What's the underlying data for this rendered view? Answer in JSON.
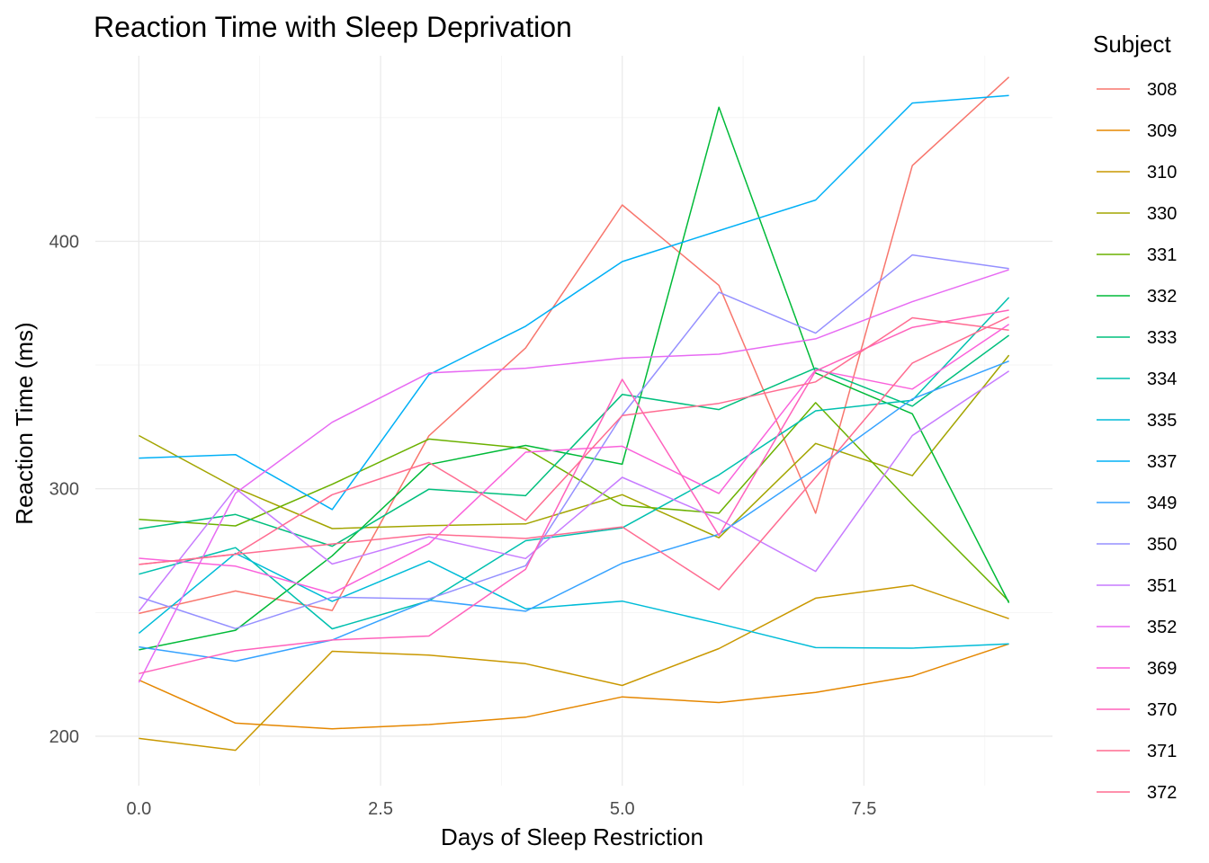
{
  "chart_data": {
    "type": "line",
    "title": "Reaction Time with Sleep Deprivation",
    "xlabel": "Days of Sleep Restriction",
    "ylabel": "Reaction Time (ms)",
    "legend_title": "Subject",
    "legend_position": "right",
    "grid": true,
    "xlim": [
      -0.45,
      9.45
    ],
    "ylim": [
      180,
      475
    ],
    "x_major_ticks": [
      {
        "value": 0,
        "label": "0.0"
      },
      {
        "value": 2.5,
        "label": "2.5"
      },
      {
        "value": 5,
        "label": "5.0"
      },
      {
        "value": 7.5,
        "label": "7.5"
      }
    ],
    "x_minor_ticks": [
      1.25,
      3.75,
      6.25,
      8.75
    ],
    "y_major_ticks": [
      {
        "value": 200,
        "label": "200"
      },
      {
        "value": 300,
        "label": "300"
      },
      {
        "value": 400,
        "label": "400"
      }
    ],
    "y_minor_ticks": [
      250,
      350,
      450
    ],
    "x": [
      0,
      1,
      2,
      3,
      4,
      5,
      6,
      7,
      8,
      9
    ],
    "series": [
      {
        "name": "308",
        "color": "#F8766D",
        "values": [
          249.6,
          258.7,
          250.8,
          321.4,
          356.9,
          414.7,
          382.2,
          290.1,
          430.6,
          466.4
        ]
      },
      {
        "name": "309",
        "color": "#E58700",
        "values": [
          222.7,
          205.3,
          203.0,
          204.7,
          207.7,
          215.9,
          213.6,
          217.7,
          224.3,
          237.3
        ]
      },
      {
        "name": "310",
        "color": "#C99800",
        "values": [
          199.1,
          194.3,
          234.3,
          232.8,
          229.3,
          220.5,
          235.4,
          255.8,
          261.0,
          247.5
        ]
      },
      {
        "name": "330",
        "color": "#A3A500",
        "values": [
          321.5,
          300.4,
          283.9,
          285.1,
          285.8,
          297.6,
          280.2,
          318.3,
          305.3,
          354.0
        ]
      },
      {
        "name": "331",
        "color": "#6BB100",
        "values": [
          287.6,
          285.0,
          301.8,
          320.1,
          316.3,
          293.3,
          290.1,
          334.8,
          293.7,
          254.5
        ]
      },
      {
        "name": "332",
        "color": "#00BA38",
        "values": [
          234.9,
          242.8,
          272.9,
          309.8,
          317.5,
          309.9,
          454.2,
          346.8,
          330.3,
          253.9
        ]
      },
      {
        "name": "333",
        "color": "#00BF7D",
        "values": [
          283.8,
          289.6,
          276.8,
          299.8,
          297.2,
          338.1,
          332.0,
          348.8,
          333.4,
          362.0
        ]
      },
      {
        "name": "334",
        "color": "#00C0AF",
        "values": [
          265.5,
          276.2,
          243.4,
          254.7,
          279.0,
          284.2,
          305.6,
          331.5,
          335.8,
          377.3
        ]
      },
      {
        "name": "335",
        "color": "#00BCD8",
        "values": [
          241.6,
          273.9,
          254.5,
          270.8,
          251.5,
          254.6,
          245.5,
          235.8,
          235.6,
          237.3
        ]
      },
      {
        "name": "337",
        "color": "#00B0F6",
        "values": [
          312.4,
          313.8,
          291.6,
          346.1,
          365.7,
          391.8,
          404.3,
          416.7,
          455.9,
          458.9
        ]
      },
      {
        "name": "349",
        "color": "#35A2FF",
        "values": [
          236.1,
          230.3,
          238.9,
          254.9,
          250.5,
          269.9,
          281.6,
          308.1,
          336.3,
          351.6
        ]
      },
      {
        "name": "350",
        "color": "#9590FF",
        "values": [
          256.3,
          243.5,
          256.2,
          255.5,
          268.9,
          329.7,
          379.4,
          362.9,
          394.5,
          389.0
        ]
      },
      {
        "name": "351",
        "color": "#C77CFF",
        "values": [
          250.5,
          300.1,
          269.6,
          280.6,
          271.8,
          304.6,
          287.7,
          266.6,
          321.5,
          347.6
        ]
      },
      {
        "name": "352",
        "color": "#E76BF3",
        "values": [
          221.7,
          298.2,
          326.9,
          346.8,
          348.7,
          352.8,
          354.4,
          360.6,
          375.6,
          388.5
        ]
      },
      {
        "name": "369",
        "color": "#FA62DB",
        "values": [
          271.9,
          268.7,
          257.7,
          277.7,
          314.8,
          317.2,
          298.1,
          348.1,
          340.3,
          366.5
        ]
      },
      {
        "name": "370",
        "color": "#FF62BC",
        "values": [
          225.3,
          234.5,
          238.9,
          240.5,
          267.5,
          344.2,
          281.1,
          347.6,
          365.2,
          372.2
        ]
      },
      {
        "name": "371",
        "color": "#FF6C91",
        "values": [
          269.4,
          273.5,
          297.6,
          310.6,
          287.2,
          329.6,
          334.5,
          343.2,
          369.1,
          364.1
        ]
      },
      {
        "name": "372",
        "color": "#FF6C91",
        "values": [
          269.4,
          273.5,
          277.7,
          281.6,
          279.9,
          284.6,
          259.2,
          304.6,
          350.8,
          369.5
        ]
      }
    ]
  }
}
